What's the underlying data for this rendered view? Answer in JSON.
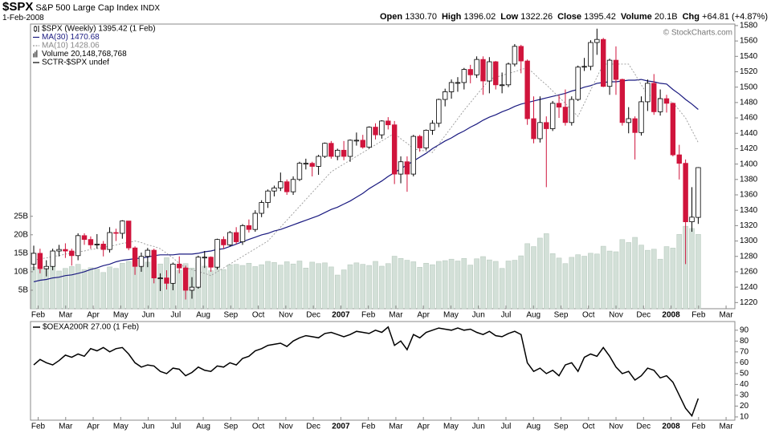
{
  "header": {
    "symbol": "$SPX",
    "name": "S&P 500 Large Cap Index",
    "exchange": "INDX",
    "date": "1-Feb-2008",
    "quote": [
      {
        "label": "Open",
        "value": "1330.70"
      },
      {
        "label": "High",
        "value": "1396.02"
      },
      {
        "label": "Low",
        "value": "1322.26"
      },
      {
        "label": "Close",
        "value": "1395.42"
      },
      {
        "label": "Volume",
        "value": "20.1B"
      },
      {
        "label": "Chg",
        "value": "+64.81 (+4.87%)"
      }
    ],
    "credit": "© StockCharts.com"
  },
  "chart_data": [
    {
      "type": "candlestick",
      "name": "$SPX (Weekly) 1395.42 (1 Feb)",
      "up_color": "#ffffff",
      "down_color": "#d0143c",
      "x_labels": [
        "Feb",
        "Mar",
        "Apr",
        "May",
        "Jun",
        "Jul",
        "Aug",
        "Sep",
        "Oct",
        "Nov",
        "Dec",
        "2007",
        "Feb",
        "Mar",
        "Apr",
        "May",
        "Jun",
        "Jul",
        "Aug",
        "Sep",
        "Oct",
        "Nov",
        "Dec",
        "2008",
        "Feb",
        "Mar"
      ],
      "ylim": [
        1212,
        1582
      ],
      "yticks": [
        1220,
        1240,
        1260,
        1280,
        1300,
        1320,
        1340,
        1360,
        1380,
        1400,
        1420,
        1440,
        1460,
        1480,
        1500,
        1520,
        1540,
        1560,
        1580
      ],
      "open": [
        1270,
        1284,
        1264,
        1267,
        1287,
        1289,
        1287,
        1281,
        1307,
        1302,
        1295,
        1296,
        1289,
        1311,
        1310,
        1326,
        1291,
        1267,
        1280,
        1288,
        1252,
        1252,
        1245,
        1270,
        1265,
        1236,
        1240,
        1279,
        1279,
        1266,
        1302,
        1295,
        1311,
        1299,
        1320,
        1315,
        1336,
        1350,
        1365,
        1369,
        1377,
        1364,
        1380,
        1401,
        1401,
        1397,
        1410,
        1427,
        1410,
        1418,
        1410,
        1431,
        1431,
        1422,
        1448,
        1438,
        1456,
        1451,
        1387,
        1403,
        1387,
        1436,
        1421,
        1444,
        1453,
        1484,
        1494,
        1506,
        1506,
        1523,
        1516,
        1536,
        1508,
        1533,
        1503,
        1503,
        1530,
        1553,
        1534,
        1459,
        1433,
        1454,
        1446,
        1479,
        1474,
        1454,
        1484,
        1526,
        1527,
        1558,
        1562,
        1501,
        1535,
        1510,
        1454,
        1459,
        1441,
        1481,
        1505,
        1468,
        1485,
        1479,
        1412,
        1401,
        1325,
        1330.7
      ],
      "high": [
        1294,
        1290,
        1275,
        1290,
        1295,
        1297,
        1290,
        1310,
        1310,
        1306,
        1309,
        1300,
        1318,
        1316,
        1327,
        1326,
        1293,
        1285,
        1291,
        1290,
        1258,
        1262,
        1272,
        1280,
        1268,
        1253,
        1281,
        1287,
        1280,
        1303,
        1306,
        1313,
        1318,
        1322,
        1328,
        1340,
        1353,
        1367,
        1372,
        1389,
        1380,
        1384,
        1403,
        1407,
        1403,
        1412,
        1428,
        1430,
        1420,
        1430,
        1432,
        1441,
        1438,
        1449,
        1453,
        1457,
        1461,
        1456,
        1410,
        1410,
        1438,
        1438,
        1445,
        1457,
        1485,
        1498,
        1510,
        1513,
        1525,
        1529,
        1540,
        1540,
        1539,
        1534,
        1519,
        1532,
        1556,
        1555,
        1536,
        1488,
        1488,
        1462,
        1482,
        1490,
        1497,
        1488,
        1528,
        1538,
        1561,
        1576,
        1564,
        1537,
        1553,
        1511,
        1474,
        1462,
        1488,
        1510,
        1517,
        1497,
        1490,
        1480,
        1425,
        1406,
        1370,
        1396.02
      ],
      "low": [
        1262,
        1258,
        1254,
        1262,
        1280,
        1278,
        1268,
        1275,
        1295,
        1290,
        1290,
        1280,
        1285,
        1300,
        1303,
        1288,
        1256,
        1260,
        1266,
        1245,
        1235,
        1237,
        1236,
        1258,
        1224,
        1225,
        1238,
        1265,
        1260,
        1263,
        1290,
        1293,
        1296,
        1295,
        1311,
        1312,
        1331,
        1343,
        1358,
        1365,
        1360,
        1360,
        1378,
        1393,
        1384,
        1386,
        1408,
        1407,
        1405,
        1405,
        1403,
        1424,
        1420,
        1420,
        1432,
        1433,
        1445,
        1374,
        1375,
        1364,
        1384,
        1416,
        1418,
        1438,
        1448,
        1475,
        1485,
        1494,
        1497,
        1505,
        1512,
        1490,
        1492,
        1497,
        1492,
        1500,
        1527,
        1518,
        1451,
        1427,
        1428,
        1370,
        1443,
        1460,
        1450,
        1450,
        1482,
        1521,
        1522,
        1542,
        1500,
        1490,
        1490,
        1450,
        1440,
        1406,
        1437,
        1469,
        1464,
        1463,
        1467,
        1410,
        1380,
        1270,
        1312,
        1322.26
      ],
      "close": [
        1284,
        1264,
        1267,
        1287,
        1289,
        1287,
        1281,
        1307,
        1302,
        1295,
        1296,
        1289,
        1311,
        1310,
        1326,
        1291,
        1267,
        1280,
        1288,
        1252,
        1252,
        1245,
        1270,
        1265,
        1236,
        1240,
        1279,
        1279,
        1266,
        1302,
        1295,
        1311,
        1299,
        1320,
        1315,
        1336,
        1350,
        1365,
        1369,
        1377,
        1364,
        1380,
        1401,
        1401,
        1397,
        1410,
        1427,
        1410,
        1418,
        1410,
        1431,
        1431,
        1422,
        1448,
        1438,
        1456,
        1451,
        1387,
        1403,
        1387,
        1436,
        1421,
        1444,
        1453,
        1484,
        1494,
        1506,
        1506,
        1523,
        1516,
        1536,
        1508,
        1533,
        1503,
        1503,
        1530,
        1553,
        1534,
        1459,
        1433,
        1454,
        1446,
        1479,
        1474,
        1454,
        1484,
        1526,
        1527,
        1558,
        1562,
        1501,
        1535,
        1510,
        1454,
        1459,
        1441,
        1481,
        1505,
        1468,
        1485,
        1479,
        1412,
        1401,
        1325,
        1331,
        1395.42
      ],
      "series": [
        {
          "name": "MA(30) 1470.68",
          "color": "#1a1a80",
          "dashed": false,
          "values": [
            1247,
            1249,
            1250,
            1252,
            1253,
            1255,
            1256,
            1258,
            1260,
            1263,
            1265,
            1268,
            1270,
            1273,
            1275,
            1276,
            1277,
            1278,
            1279,
            1281,
            1282,
            1282,
            1282,
            1283,
            1283,
            1283,
            1284,
            1286,
            1287,
            1289,
            1290,
            1293,
            1296,
            1299,
            1302,
            1305,
            1308,
            1310,
            1313,
            1315,
            1318,
            1321,
            1324,
            1327,
            1330,
            1333,
            1337,
            1341,
            1344,
            1348,
            1352,
            1357,
            1362,
            1368,
            1373,
            1378,
            1384,
            1389,
            1394,
            1399,
            1404,
            1409,
            1414,
            1420,
            1425,
            1430,
            1434,
            1439,
            1443,
            1448,
            1452,
            1457,
            1461,
            1464,
            1468,
            1471,
            1475,
            1478,
            1480,
            1482,
            1484,
            1486,
            1488,
            1490,
            1492,
            1495,
            1497,
            1500,
            1502,
            1505,
            1506,
            1507,
            1507,
            1508,
            1509,
            1509,
            1510,
            1508,
            1507,
            1505,
            1504,
            1497,
            1491,
            1484,
            1478,
            1471
          ]
        },
        {
          "name": "MA(10) 1428.06",
          "color": "#999999",
          "dashed": true,
          "values": [
            1275,
            1277,
            1278,
            1280,
            1281,
            1283,
            1284,
            1286,
            1287,
            1289,
            1290,
            1292,
            1293,
            1295,
            1297,
            1298,
            1300,
            1298,
            1295,
            1293,
            1290,
            1284,
            1278,
            1271,
            1265,
            1263,
            1260,
            1258,
            1255,
            1260,
            1265,
            1270,
            1275,
            1280,
            1285,
            1290,
            1295,
            1300,
            1309,
            1318,
            1327,
            1336,
            1345,
            1354,
            1363,
            1372,
            1381,
            1390,
            1395,
            1400,
            1405,
            1410,
            1415,
            1420,
            1425,
            1430,
            1435,
            1440,
            1433,
            1427,
            1420,
            1418,
            1417,
            1415,
            1426,
            1437,
            1448,
            1459,
            1470,
            1480,
            1490,
            1500,
            1510,
            1513,
            1515,
            1518,
            1520,
            1523,
            1525,
            1518,
            1510,
            1503,
            1495,
            1487,
            1479,
            1470,
            1462,
            1479,
            1496,
            1513,
            1530,
            1530,
            1530,
            1530,
            1530,
            1517,
            1503,
            1490,
            1488,
            1485,
            1483,
            1480,
            1470,
            1460,
            1444,
            1428
          ]
        }
      ],
      "volume": {
        "name": "Volume 20,148,768,768",
        "color": "#d3e0d8",
        "ylim": [
          0,
          77
        ],
        "yticks": [
          {
            "value": 5,
            "label": "5B"
          },
          {
            "value": 10,
            "label": "10B"
          },
          {
            "value": 15,
            "label": "15B"
          },
          {
            "value": 20,
            "label": "20B"
          },
          {
            "value": 25,
            "label": "25B"
          }
        ],
        "values": [
          11.2,
          10.5,
          10.8,
          11.5,
          10.2,
          10.9,
          11.4,
          12.0,
          10.6,
          11.1,
          10.7,
          9.8,
          11.3,
          10.9,
          12.3,
          12.8,
          13.5,
          11.2,
          12.6,
          12.9,
          12.1,
          13.8,
          11.6,
          10.4,
          12.2,
          11.0,
          12.4,
          11.5,
          10.3,
          11.8,
          10.6,
          11.9,
          12.0,
          11.7,
          12.3,
          11.4,
          11.9,
          12.8,
          12.5,
          11.8,
          12.7,
          12.1,
          12.9,
          11.0,
          12.6,
          12.2,
          12.4,
          11.3,
          9.1,
          10.5,
          11.9,
          12.4,
          12.0,
          11.7,
          12.8,
          11.5,
          12.2,
          14.2,
          13.6,
          13.1,
          12.7,
          11.2,
          12.3,
          11.9,
          12.8,
          13.0,
          13.4,
          12.9,
          13.6,
          11.8,
          13.5,
          14.1,
          13.2,
          12.8,
          10.9,
          12.9,
          13.1,
          14.3,
          17.6,
          16.8,
          19.1,
          20.3,
          14.9,
          13.7,
          12.2,
          13.9,
          14.6,
          14.2,
          15.0,
          14.8,
          16.9,
          15.6,
          15.4,
          18.7,
          17.9,
          19.3,
          17.2,
          15.8,
          16.1,
          13.4,
          16.8,
          16.4,
          20.1,
          22.3,
          21.7,
          20.1
        ]
      },
      "notes": [
        "SCTR-$SPX undef"
      ]
    },
    {
      "type": "line",
      "name": "$OEXA200R 27.00 (1 Feb)",
      "color": "#000000",
      "ylim": [
        7,
        98
      ],
      "yticks": [
        10,
        20,
        30,
        40,
        50,
        60,
        70,
        80,
        90
      ],
      "values": [
        58,
        63,
        60,
        58,
        62,
        67,
        65,
        68,
        66,
        73,
        71,
        74,
        70,
        73,
        74,
        68,
        60,
        56,
        58,
        57,
        52,
        50,
        55,
        54,
        48,
        51,
        56,
        53,
        52,
        57,
        56,
        60,
        58,
        64,
        66,
        71,
        73,
        76,
        77,
        78,
        75,
        80,
        83,
        85,
        84,
        83,
        87,
        88,
        86,
        84,
        86,
        89,
        88,
        87,
        90,
        88,
        93,
        76,
        80,
        72,
        86,
        83,
        88,
        90,
        92,
        91,
        90,
        92,
        90,
        91,
        88,
        86,
        89,
        85,
        84,
        87,
        89,
        86,
        60,
        52,
        55,
        50,
        53,
        48,
        58,
        60,
        52,
        65,
        68,
        66,
        74,
        66,
        56,
        50,
        52,
        44,
        48,
        55,
        53,
        46,
        48,
        42,
        30,
        18,
        11,
        27
      ]
    }
  ]
}
